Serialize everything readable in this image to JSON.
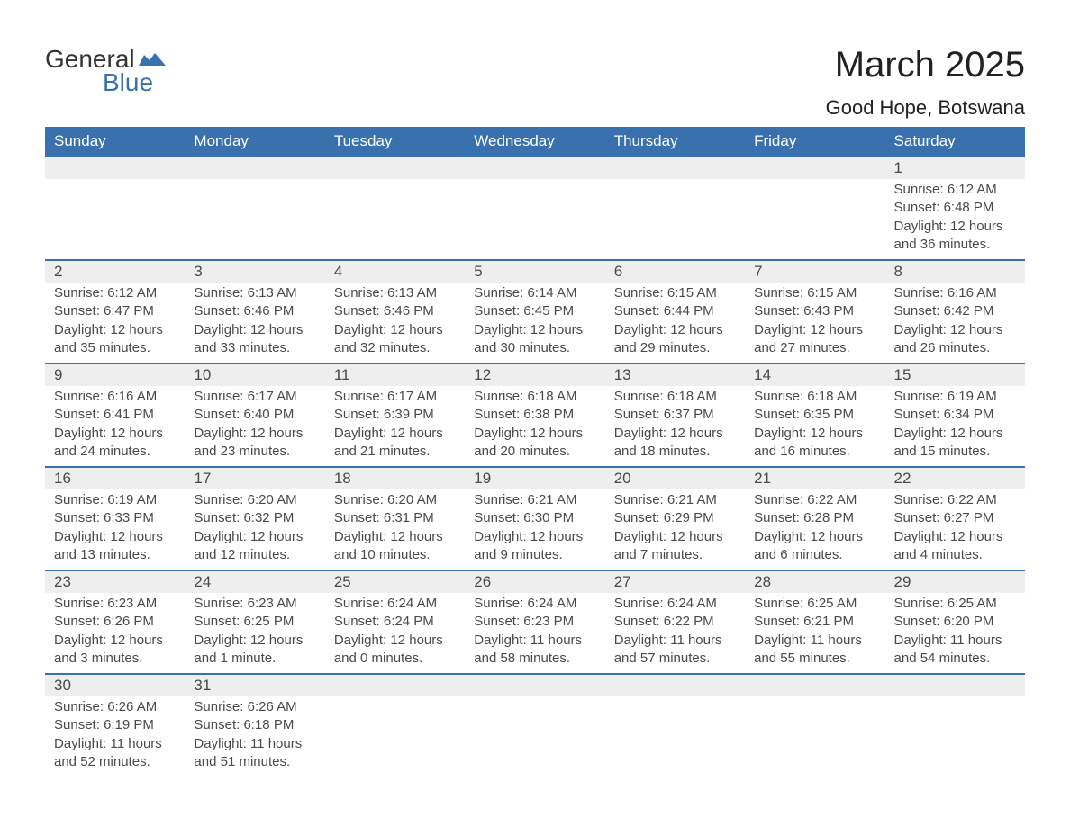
{
  "brand": {
    "word1": "General",
    "word2": "Blue"
  },
  "title": "March 2025",
  "location": "Good Hope, Botswana",
  "colors": {
    "header_bg": "#3871ad",
    "header_text": "#ffffff",
    "daynum_bg": "#eeeeee",
    "body_text": "#4a4a4a",
    "row_border": "#3871ad",
    "page_bg": "#ffffff"
  },
  "typography": {
    "month_title_fontsize": 40,
    "location_fontsize": 22,
    "weekday_fontsize": 17,
    "daynum_fontsize": 17,
    "body_fontsize": 15
  },
  "weekdays": [
    "Sunday",
    "Monday",
    "Tuesday",
    "Wednesday",
    "Thursday",
    "Friday",
    "Saturday"
  ],
  "weeks": [
    [
      null,
      null,
      null,
      null,
      null,
      null,
      {
        "n": "1",
        "sunrise": "Sunrise: 6:12 AM",
        "sunset": "Sunset: 6:48 PM",
        "dl1": "Daylight: 12 hours",
        "dl2": "and 36 minutes."
      }
    ],
    [
      {
        "n": "2",
        "sunrise": "Sunrise: 6:12 AM",
        "sunset": "Sunset: 6:47 PM",
        "dl1": "Daylight: 12 hours",
        "dl2": "and 35 minutes."
      },
      {
        "n": "3",
        "sunrise": "Sunrise: 6:13 AM",
        "sunset": "Sunset: 6:46 PM",
        "dl1": "Daylight: 12 hours",
        "dl2": "and 33 minutes."
      },
      {
        "n": "4",
        "sunrise": "Sunrise: 6:13 AM",
        "sunset": "Sunset: 6:46 PM",
        "dl1": "Daylight: 12 hours",
        "dl2": "and 32 minutes."
      },
      {
        "n": "5",
        "sunrise": "Sunrise: 6:14 AM",
        "sunset": "Sunset: 6:45 PM",
        "dl1": "Daylight: 12 hours",
        "dl2": "and 30 minutes."
      },
      {
        "n": "6",
        "sunrise": "Sunrise: 6:15 AM",
        "sunset": "Sunset: 6:44 PM",
        "dl1": "Daylight: 12 hours",
        "dl2": "and 29 minutes."
      },
      {
        "n": "7",
        "sunrise": "Sunrise: 6:15 AM",
        "sunset": "Sunset: 6:43 PM",
        "dl1": "Daylight: 12 hours",
        "dl2": "and 27 minutes."
      },
      {
        "n": "8",
        "sunrise": "Sunrise: 6:16 AM",
        "sunset": "Sunset: 6:42 PM",
        "dl1": "Daylight: 12 hours",
        "dl2": "and 26 minutes."
      }
    ],
    [
      {
        "n": "9",
        "sunrise": "Sunrise: 6:16 AM",
        "sunset": "Sunset: 6:41 PM",
        "dl1": "Daylight: 12 hours",
        "dl2": "and 24 minutes."
      },
      {
        "n": "10",
        "sunrise": "Sunrise: 6:17 AM",
        "sunset": "Sunset: 6:40 PM",
        "dl1": "Daylight: 12 hours",
        "dl2": "and 23 minutes."
      },
      {
        "n": "11",
        "sunrise": "Sunrise: 6:17 AM",
        "sunset": "Sunset: 6:39 PM",
        "dl1": "Daylight: 12 hours",
        "dl2": "and 21 minutes."
      },
      {
        "n": "12",
        "sunrise": "Sunrise: 6:18 AM",
        "sunset": "Sunset: 6:38 PM",
        "dl1": "Daylight: 12 hours",
        "dl2": "and 20 minutes."
      },
      {
        "n": "13",
        "sunrise": "Sunrise: 6:18 AM",
        "sunset": "Sunset: 6:37 PM",
        "dl1": "Daylight: 12 hours",
        "dl2": "and 18 minutes."
      },
      {
        "n": "14",
        "sunrise": "Sunrise: 6:18 AM",
        "sunset": "Sunset: 6:35 PM",
        "dl1": "Daylight: 12 hours",
        "dl2": "and 16 minutes."
      },
      {
        "n": "15",
        "sunrise": "Sunrise: 6:19 AM",
        "sunset": "Sunset: 6:34 PM",
        "dl1": "Daylight: 12 hours",
        "dl2": "and 15 minutes."
      }
    ],
    [
      {
        "n": "16",
        "sunrise": "Sunrise: 6:19 AM",
        "sunset": "Sunset: 6:33 PM",
        "dl1": "Daylight: 12 hours",
        "dl2": "and 13 minutes."
      },
      {
        "n": "17",
        "sunrise": "Sunrise: 6:20 AM",
        "sunset": "Sunset: 6:32 PM",
        "dl1": "Daylight: 12 hours",
        "dl2": "and 12 minutes."
      },
      {
        "n": "18",
        "sunrise": "Sunrise: 6:20 AM",
        "sunset": "Sunset: 6:31 PM",
        "dl1": "Daylight: 12 hours",
        "dl2": "and 10 minutes."
      },
      {
        "n": "19",
        "sunrise": "Sunrise: 6:21 AM",
        "sunset": "Sunset: 6:30 PM",
        "dl1": "Daylight: 12 hours",
        "dl2": "and 9 minutes."
      },
      {
        "n": "20",
        "sunrise": "Sunrise: 6:21 AM",
        "sunset": "Sunset: 6:29 PM",
        "dl1": "Daylight: 12 hours",
        "dl2": "and 7 minutes."
      },
      {
        "n": "21",
        "sunrise": "Sunrise: 6:22 AM",
        "sunset": "Sunset: 6:28 PM",
        "dl1": "Daylight: 12 hours",
        "dl2": "and 6 minutes."
      },
      {
        "n": "22",
        "sunrise": "Sunrise: 6:22 AM",
        "sunset": "Sunset: 6:27 PM",
        "dl1": "Daylight: 12 hours",
        "dl2": "and 4 minutes."
      }
    ],
    [
      {
        "n": "23",
        "sunrise": "Sunrise: 6:23 AM",
        "sunset": "Sunset: 6:26 PM",
        "dl1": "Daylight: 12 hours",
        "dl2": "and 3 minutes."
      },
      {
        "n": "24",
        "sunrise": "Sunrise: 6:23 AM",
        "sunset": "Sunset: 6:25 PM",
        "dl1": "Daylight: 12 hours",
        "dl2": "and 1 minute."
      },
      {
        "n": "25",
        "sunrise": "Sunrise: 6:24 AM",
        "sunset": "Sunset: 6:24 PM",
        "dl1": "Daylight: 12 hours",
        "dl2": "and 0 minutes."
      },
      {
        "n": "26",
        "sunrise": "Sunrise: 6:24 AM",
        "sunset": "Sunset: 6:23 PM",
        "dl1": "Daylight: 11 hours",
        "dl2": "and 58 minutes."
      },
      {
        "n": "27",
        "sunrise": "Sunrise: 6:24 AM",
        "sunset": "Sunset: 6:22 PM",
        "dl1": "Daylight: 11 hours",
        "dl2": "and 57 minutes."
      },
      {
        "n": "28",
        "sunrise": "Sunrise: 6:25 AM",
        "sunset": "Sunset: 6:21 PM",
        "dl1": "Daylight: 11 hours",
        "dl2": "and 55 minutes."
      },
      {
        "n": "29",
        "sunrise": "Sunrise: 6:25 AM",
        "sunset": "Sunset: 6:20 PM",
        "dl1": "Daylight: 11 hours",
        "dl2": "and 54 minutes."
      }
    ],
    [
      {
        "n": "30",
        "sunrise": "Sunrise: 6:26 AM",
        "sunset": "Sunset: 6:19 PM",
        "dl1": "Daylight: 11 hours",
        "dl2": "and 52 minutes."
      },
      {
        "n": "31",
        "sunrise": "Sunrise: 6:26 AM",
        "sunset": "Sunset: 6:18 PM",
        "dl1": "Daylight: 11 hours",
        "dl2": "and 51 minutes."
      },
      null,
      null,
      null,
      null,
      null
    ]
  ]
}
